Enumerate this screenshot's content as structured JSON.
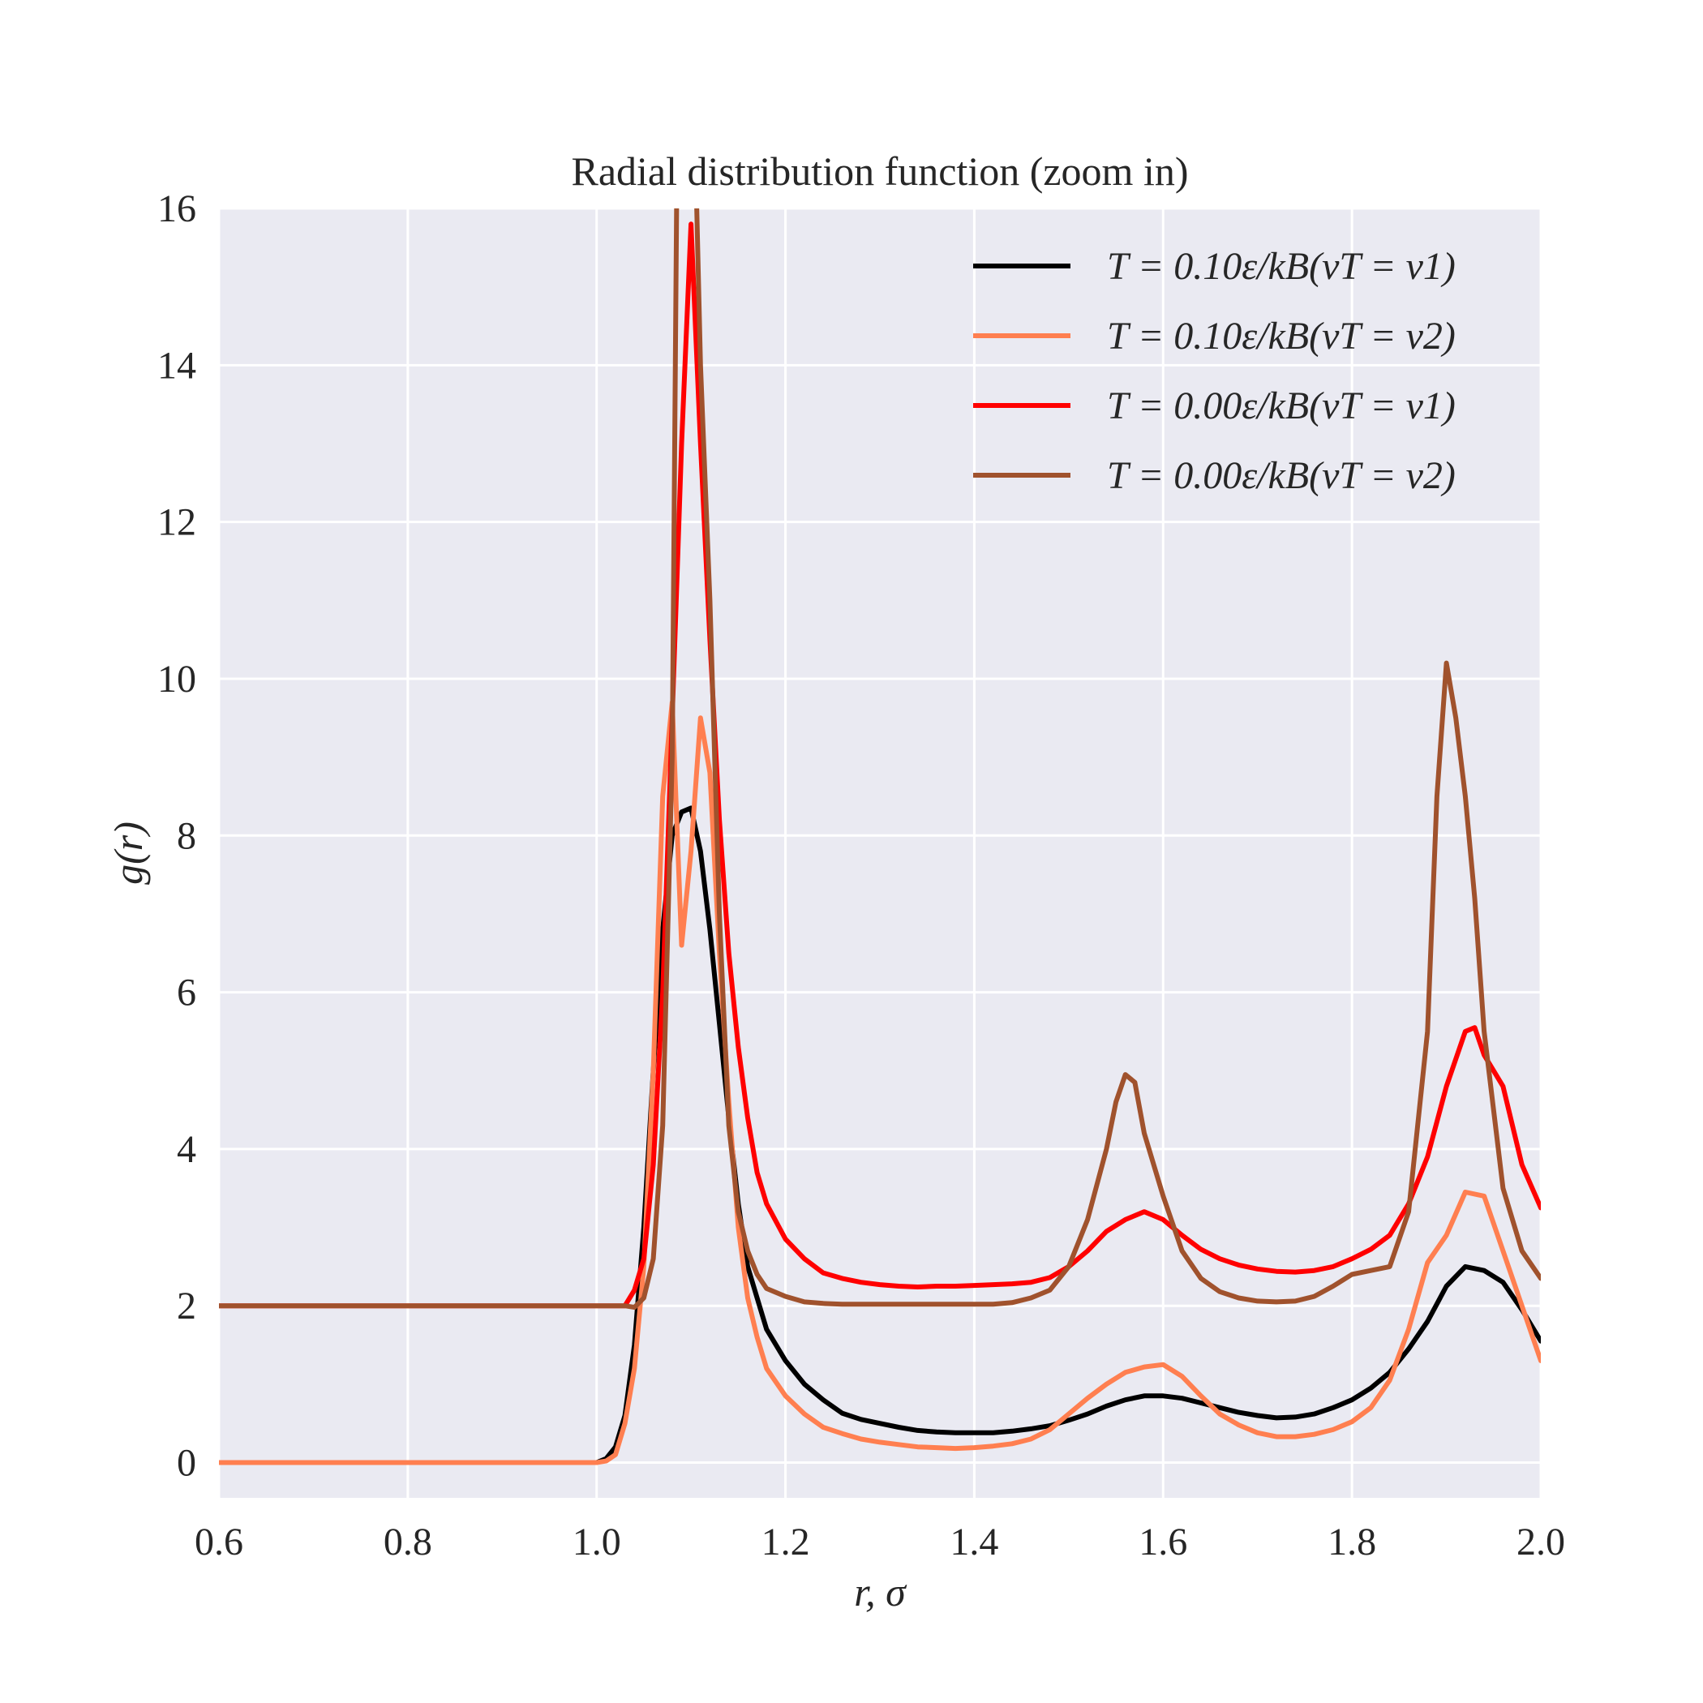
{
  "chart_data": {
    "type": "line",
    "title": "Radial distribution function (zoom in)",
    "xlabel": "r, σ",
    "ylabel": "g(r)",
    "xlim": [
      0.6,
      2.0
    ],
    "ylim": [
      -0.45,
      16
    ],
    "xticks": [
      "0.6",
      "0.8",
      "1.0",
      "1.2",
      "1.4",
      "1.6",
      "1.8",
      "2.0"
    ],
    "yticks": [
      "0",
      "2",
      "4",
      "6",
      "8",
      "10",
      "12",
      "14",
      "16"
    ],
    "grid": true,
    "legend_position": "top-right",
    "series": [
      {
        "name": "T = 0.10ε/kB(vT = v1)",
        "color": "#000000",
        "points": [
          [
            0.6,
            0
          ],
          [
            1.0,
            0
          ],
          [
            1.01,
            0.05
          ],
          [
            1.02,
            0.2
          ],
          [
            1.03,
            0.6
          ],
          [
            1.04,
            1.5
          ],
          [
            1.05,
            3
          ],
          [
            1.06,
            5
          ],
          [
            1.07,
            6.8
          ],
          [
            1.08,
            8
          ],
          [
            1.09,
            8.3
          ],
          [
            1.1,
            8.35
          ],
          [
            1.11,
            7.8
          ],
          [
            1.12,
            6.8
          ],
          [
            1.13,
            5.6
          ],
          [
            1.14,
            4.4
          ],
          [
            1.15,
            3.3
          ],
          [
            1.16,
            2.5
          ],
          [
            1.17,
            2.1
          ],
          [
            1.18,
            1.7
          ],
          [
            1.2,
            1.3
          ],
          [
            1.22,
            1.0
          ],
          [
            1.24,
            0.8
          ],
          [
            1.26,
            0.63
          ],
          [
            1.28,
            0.55
          ],
          [
            1.3,
            0.5
          ],
          [
            1.32,
            0.45
          ],
          [
            1.34,
            0.41
          ],
          [
            1.36,
            0.39
          ],
          [
            1.38,
            0.38
          ],
          [
            1.4,
            0.38
          ],
          [
            1.42,
            0.38
          ],
          [
            1.44,
            0.4
          ],
          [
            1.46,
            0.43
          ],
          [
            1.48,
            0.47
          ],
          [
            1.5,
            0.54
          ],
          [
            1.52,
            0.62
          ],
          [
            1.54,
            0.72
          ],
          [
            1.56,
            0.8
          ],
          [
            1.58,
            0.85
          ],
          [
            1.6,
            0.85
          ],
          [
            1.62,
            0.82
          ],
          [
            1.64,
            0.76
          ],
          [
            1.66,
            0.7
          ],
          [
            1.68,
            0.64
          ],
          [
            1.7,
            0.6
          ],
          [
            1.72,
            0.57
          ],
          [
            1.74,
            0.58
          ],
          [
            1.76,
            0.62
          ],
          [
            1.78,
            0.7
          ],
          [
            1.8,
            0.8
          ],
          [
            1.82,
            0.95
          ],
          [
            1.84,
            1.15
          ],
          [
            1.86,
            1.45
          ],
          [
            1.88,
            1.8
          ],
          [
            1.9,
            2.25
          ],
          [
            1.92,
            2.5
          ],
          [
            1.94,
            2.45
          ],
          [
            1.96,
            2.3
          ],
          [
            1.98,
            1.95
          ],
          [
            2.0,
            1.55
          ]
        ]
      },
      {
        "name": "T = 0.10ε/kB(vT = v2)",
        "color": "#ff7f50",
        "points": [
          [
            0.6,
            0
          ],
          [
            1.0,
            0
          ],
          [
            1.01,
            0.02
          ],
          [
            1.02,
            0.1
          ],
          [
            1.03,
            0.5
          ],
          [
            1.04,
            1.2
          ],
          [
            1.05,
            2.5
          ],
          [
            1.06,
            5
          ],
          [
            1.07,
            8.5
          ],
          [
            1.08,
            9.7
          ],
          [
            1.09,
            6.6
          ],
          [
            1.1,
            7.8
          ],
          [
            1.11,
            9.5
          ],
          [
            1.12,
            8.8
          ],
          [
            1.13,
            6.5
          ],
          [
            1.14,
            4.6
          ],
          [
            1.15,
            3.0
          ],
          [
            1.16,
            2.1
          ],
          [
            1.17,
            1.6
          ],
          [
            1.18,
            1.2
          ],
          [
            1.2,
            0.85
          ],
          [
            1.22,
            0.62
          ],
          [
            1.24,
            0.45
          ],
          [
            1.26,
            0.37
          ],
          [
            1.28,
            0.3
          ],
          [
            1.3,
            0.26
          ],
          [
            1.32,
            0.23
          ],
          [
            1.34,
            0.2
          ],
          [
            1.36,
            0.19
          ],
          [
            1.38,
            0.18
          ],
          [
            1.4,
            0.19
          ],
          [
            1.42,
            0.21
          ],
          [
            1.44,
            0.24
          ],
          [
            1.46,
            0.3
          ],
          [
            1.48,
            0.42
          ],
          [
            1.5,
            0.62
          ],
          [
            1.52,
            0.82
          ],
          [
            1.54,
            1.0
          ],
          [
            1.56,
            1.15
          ],
          [
            1.58,
            1.22
          ],
          [
            1.6,
            1.25
          ],
          [
            1.62,
            1.1
          ],
          [
            1.64,
            0.85
          ],
          [
            1.66,
            0.62
          ],
          [
            1.68,
            0.48
          ],
          [
            1.7,
            0.38
          ],
          [
            1.72,
            0.33
          ],
          [
            1.74,
            0.33
          ],
          [
            1.76,
            0.36
          ],
          [
            1.78,
            0.42
          ],
          [
            1.8,
            0.52
          ],
          [
            1.82,
            0.7
          ],
          [
            1.84,
            1.05
          ],
          [
            1.86,
            1.7
          ],
          [
            1.88,
            2.55
          ],
          [
            1.9,
            2.9
          ],
          [
            1.92,
            3.45
          ],
          [
            1.94,
            3.4
          ],
          [
            1.96,
            2.7
          ],
          [
            1.98,
            2.0
          ],
          [
            2.0,
            1.3
          ]
        ]
      },
      {
        "name": "T = 0.00ε/kB(vT = v1)",
        "color": "#ff0000",
        "points": [
          [
            0.6,
            2
          ],
          [
            1.03,
            2
          ],
          [
            1.04,
            2.2
          ],
          [
            1.05,
            2.6
          ],
          [
            1.06,
            3.8
          ],
          [
            1.07,
            6
          ],
          [
            1.08,
            9.5
          ],
          [
            1.09,
            13
          ],
          [
            1.1,
            15.8
          ],
          [
            1.11,
            13
          ],
          [
            1.12,
            10.5
          ],
          [
            1.13,
            8.2
          ],
          [
            1.14,
            6.5
          ],
          [
            1.15,
            5.3
          ],
          [
            1.16,
            4.4
          ],
          [
            1.17,
            3.7
          ],
          [
            1.18,
            3.3
          ],
          [
            1.2,
            2.85
          ],
          [
            1.22,
            2.6
          ],
          [
            1.24,
            2.42
          ],
          [
            1.26,
            2.35
          ],
          [
            1.28,
            2.3
          ],
          [
            1.3,
            2.27
          ],
          [
            1.32,
            2.25
          ],
          [
            1.34,
            2.24
          ],
          [
            1.36,
            2.25
          ],
          [
            1.38,
            2.25
          ],
          [
            1.4,
            2.26
          ],
          [
            1.42,
            2.27
          ],
          [
            1.44,
            2.28
          ],
          [
            1.46,
            2.3
          ],
          [
            1.48,
            2.36
          ],
          [
            1.5,
            2.5
          ],
          [
            1.52,
            2.7
          ],
          [
            1.54,
            2.95
          ],
          [
            1.56,
            3.1
          ],
          [
            1.58,
            3.2
          ],
          [
            1.6,
            3.1
          ],
          [
            1.62,
            2.9
          ],
          [
            1.64,
            2.72
          ],
          [
            1.66,
            2.6
          ],
          [
            1.68,
            2.52
          ],
          [
            1.7,
            2.47
          ],
          [
            1.72,
            2.44
          ],
          [
            1.74,
            2.43
          ],
          [
            1.76,
            2.45
          ],
          [
            1.78,
            2.5
          ],
          [
            1.8,
            2.6
          ],
          [
            1.82,
            2.72
          ],
          [
            1.84,
            2.9
          ],
          [
            1.86,
            3.3
          ],
          [
            1.88,
            3.9
          ],
          [
            1.9,
            4.8
          ],
          [
            1.92,
            5.5
          ],
          [
            1.93,
            5.55
          ],
          [
            1.94,
            5.2
          ],
          [
            1.96,
            4.8
          ],
          [
            1.98,
            3.8
          ],
          [
            2.0,
            3.25
          ]
        ]
      },
      {
        "name": "T = 0.00ε/kB(vT = v2)",
        "color": "#a0522d",
        "points": [
          [
            0.6,
            2
          ],
          [
            1.03,
            2
          ],
          [
            1.04,
            1.98
          ],
          [
            1.05,
            2.1
          ],
          [
            1.06,
            2.6
          ],
          [
            1.07,
            4.3
          ],
          [
            1.08,
            9
          ],
          [
            1.085,
            16.5
          ],
          [
            1.1,
            16.5
          ],
          [
            1.105,
            16.5
          ],
          [
            1.11,
            14
          ],
          [
            1.12,
            11
          ],
          [
            1.13,
            7
          ],
          [
            1.14,
            4.3
          ],
          [
            1.15,
            3.2
          ],
          [
            1.16,
            2.7
          ],
          [
            1.17,
            2.4
          ],
          [
            1.18,
            2.22
          ],
          [
            1.2,
            2.12
          ],
          [
            1.22,
            2.05
          ],
          [
            1.24,
            2.03
          ],
          [
            1.26,
            2.02
          ],
          [
            1.28,
            2.02
          ],
          [
            1.3,
            2.02
          ],
          [
            1.32,
            2.02
          ],
          [
            1.34,
            2.02
          ],
          [
            1.36,
            2.02
          ],
          [
            1.38,
            2.02
          ],
          [
            1.4,
            2.02
          ],
          [
            1.42,
            2.02
          ],
          [
            1.44,
            2.04
          ],
          [
            1.46,
            2.1
          ],
          [
            1.48,
            2.2
          ],
          [
            1.5,
            2.5
          ],
          [
            1.52,
            3.1
          ],
          [
            1.54,
            4.0
          ],
          [
            1.55,
            4.6
          ],
          [
            1.56,
            4.95
          ],
          [
            1.57,
            4.85
          ],
          [
            1.58,
            4.2
          ],
          [
            1.6,
            3.4
          ],
          [
            1.62,
            2.7
          ],
          [
            1.64,
            2.35
          ],
          [
            1.66,
            2.18
          ],
          [
            1.68,
            2.1
          ],
          [
            1.7,
            2.06
          ],
          [
            1.72,
            2.05
          ],
          [
            1.74,
            2.06
          ],
          [
            1.76,
            2.12
          ],
          [
            1.78,
            2.25
          ],
          [
            1.8,
            2.4
          ],
          [
            1.82,
            2.45
          ],
          [
            1.84,
            2.5
          ],
          [
            1.86,
            3.2
          ],
          [
            1.88,
            5.5
          ],
          [
            1.89,
            8.5
          ],
          [
            1.9,
            10.2
          ],
          [
            1.91,
            9.5
          ],
          [
            1.92,
            8.5
          ],
          [
            1.93,
            7.2
          ],
          [
            1.94,
            5.5
          ],
          [
            1.96,
            3.5
          ],
          [
            1.98,
            2.7
          ],
          [
            2.0,
            2.35
          ]
        ]
      }
    ]
  }
}
